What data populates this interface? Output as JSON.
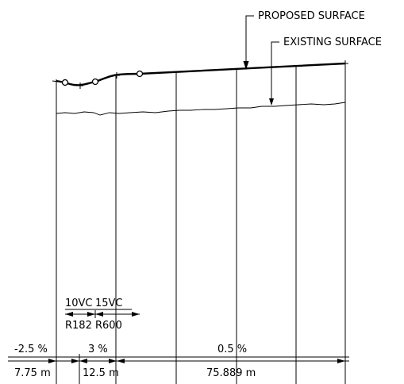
{
  "leaders": {
    "proposed_surface": "PROPOSED SURFACE",
    "existing_surface": "EXISTING SURFACE"
  },
  "vertical_curves": [
    {
      "length": "10VC",
      "radius": "R182"
    },
    {
      "length": "15VC",
      "radius": "R600"
    }
  ],
  "grades": [
    "-2.5 %",
    "3 %",
    "0.5 %"
  ],
  "segment_lengths": [
    "7.75 m",
    "12.5 m",
    "75.889 m"
  ]
}
